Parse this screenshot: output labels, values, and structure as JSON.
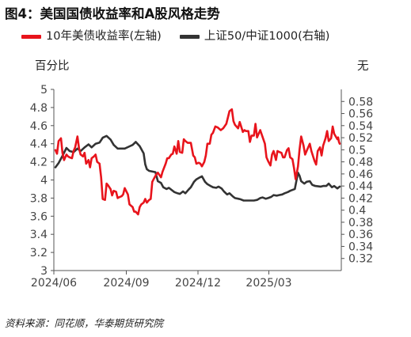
{
  "figure_title": "图4：美国国债收益率和A股风格走势",
  "source": "资料来源：同花顺，华泰期货研究院",
  "colors": {
    "series1": "#e8141c",
    "series2": "#333333",
    "axis": "#555555",
    "background": "#ffffff"
  },
  "chart_data": {
    "type": "line",
    "title": "图4：美国国债收益率和A股风格走势",
    "left_axis": {
      "unit": "百分比",
      "ylim": [
        3,
        5
      ],
      "ticks": [
        "3",
        "3.2",
        "3.4",
        "3.6",
        "3.8",
        "4",
        "4.2",
        "4.4",
        "4.6",
        "4.8",
        "5"
      ]
    },
    "right_axis": {
      "unit": "无",
      "ylim": [
        0.3,
        0.6
      ],
      "ticks": [
        "0.32",
        "0.34",
        "0.36",
        "0.38",
        "0.4",
        "0.42",
        "0.44",
        "0.46",
        "0.48",
        "0.5",
        "0.52",
        "0.54",
        "0.56",
        "0.58"
      ]
    },
    "x_axis": {
      "range": [
        "2024-06-01",
        "2025-06-01"
      ],
      "ticks": [
        "2024/06",
        "2024/09",
        "2024/12",
        "2025/03"
      ],
      "tick_dates": [
        "2024-06-01",
        "2024-09-01",
        "2024-12-01",
        "2025-03-01"
      ]
    },
    "grid": false,
    "legend_position": "top",
    "series": [
      {
        "name": "10年美债收益率(左轴)",
        "axis": "left",
        "color": "#e8141c",
        "points": [
          [
            "2024-06-03",
            4.33
          ],
          [
            "2024-06-05",
            4.29
          ],
          [
            "2024-06-07",
            4.43
          ],
          [
            "2024-06-10",
            4.46
          ],
          [
            "2024-06-12",
            4.3
          ],
          [
            "2024-06-14",
            4.22
          ],
          [
            "2024-06-17",
            4.28
          ],
          [
            "2024-06-19",
            4.26
          ],
          [
            "2024-06-21",
            4.25
          ],
          [
            "2024-06-24",
            4.24
          ],
          [
            "2024-06-26",
            4.32
          ],
          [
            "2024-06-28",
            4.36
          ],
          [
            "2024-07-01",
            4.48
          ],
          [
            "2024-07-03",
            4.35
          ],
          [
            "2024-07-05",
            4.28
          ],
          [
            "2024-07-08",
            4.26
          ],
          [
            "2024-07-10",
            4.3
          ],
          [
            "2024-07-12",
            4.18
          ],
          [
            "2024-07-15",
            4.22
          ],
          [
            "2024-07-17",
            4.14
          ],
          [
            "2024-07-19",
            4.24
          ],
          [
            "2024-07-22",
            4.26
          ],
          [
            "2024-07-24",
            4.28
          ],
          [
            "2024-07-26",
            4.2
          ],
          [
            "2024-07-29",
            4.18
          ],
          [
            "2024-07-31",
            4.03
          ],
          [
            "2024-08-02",
            3.79
          ],
          [
            "2024-08-05",
            3.78
          ],
          [
            "2024-08-07",
            3.96
          ],
          [
            "2024-08-09",
            3.94
          ],
          [
            "2024-08-12",
            3.9
          ],
          [
            "2024-08-14",
            3.83
          ],
          [
            "2024-08-16",
            3.88
          ],
          [
            "2024-08-19",
            3.87
          ],
          [
            "2024-08-21",
            3.8
          ],
          [
            "2024-08-23",
            3.81
          ],
          [
            "2024-08-26",
            3.82
          ],
          [
            "2024-08-28",
            3.84
          ],
          [
            "2024-08-30",
            3.91
          ],
          [
            "2024-09-03",
            3.84
          ],
          [
            "2024-09-05",
            3.73
          ],
          [
            "2024-09-09",
            3.7
          ],
          [
            "2024-09-11",
            3.65
          ],
          [
            "2024-09-13",
            3.65
          ],
          [
            "2024-09-16",
            3.62
          ],
          [
            "2024-09-18",
            3.7
          ],
          [
            "2024-09-20",
            3.73
          ],
          [
            "2024-09-23",
            3.75
          ],
          [
            "2024-09-25",
            3.79
          ],
          [
            "2024-09-27",
            3.75
          ],
          [
            "2024-09-30",
            3.78
          ],
          [
            "2024-10-02",
            3.79
          ],
          [
            "2024-10-04",
            3.98
          ],
          [
            "2024-10-07",
            4.03
          ],
          [
            "2024-10-09",
            4.06
          ],
          [
            "2024-10-11",
            4.08
          ],
          [
            "2024-10-15",
            4.03
          ],
          [
            "2024-10-17",
            4.09
          ],
          [
            "2024-10-21",
            4.18
          ],
          [
            "2024-10-23",
            4.24
          ],
          [
            "2024-10-25",
            4.24
          ],
          [
            "2024-10-28",
            4.28
          ],
          [
            "2024-10-30",
            4.29
          ],
          [
            "2024-11-01",
            4.37
          ],
          [
            "2024-11-04",
            4.29
          ],
          [
            "2024-11-06",
            4.43
          ],
          [
            "2024-11-08",
            4.31
          ],
          [
            "2024-11-11",
            4.3
          ],
          [
            "2024-11-13",
            4.45
          ],
          [
            "2024-11-15",
            4.43
          ],
          [
            "2024-11-18",
            4.41
          ],
          [
            "2024-11-20",
            4.41
          ],
          [
            "2024-11-22",
            4.41
          ],
          [
            "2024-11-25",
            4.27
          ],
          [
            "2024-11-27",
            4.25
          ],
          [
            "2024-11-29",
            4.18
          ],
          [
            "2024-12-02",
            4.19
          ],
          [
            "2024-12-04",
            4.18
          ],
          [
            "2024-12-06",
            4.15
          ],
          [
            "2024-12-09",
            4.2
          ],
          [
            "2024-12-11",
            4.27
          ],
          [
            "2024-12-13",
            4.4
          ],
          [
            "2024-12-16",
            4.4
          ],
          [
            "2024-12-18",
            4.5
          ],
          [
            "2024-12-20",
            4.52
          ],
          [
            "2024-12-23",
            4.59
          ],
          [
            "2024-12-26",
            4.58
          ],
          [
            "2024-12-30",
            4.55
          ],
          [
            "2025-01-02",
            4.57
          ],
          [
            "2025-01-06",
            4.62
          ],
          [
            "2025-01-08",
            4.69
          ],
          [
            "2025-01-10",
            4.76
          ],
          [
            "2025-01-13",
            4.78
          ],
          [
            "2025-01-15",
            4.65
          ],
          [
            "2025-01-17",
            4.61
          ],
          [
            "2025-01-21",
            4.57
          ],
          [
            "2025-01-23",
            4.64
          ],
          [
            "2025-01-27",
            4.53
          ],
          [
            "2025-01-29",
            4.55
          ],
          [
            "2025-01-31",
            4.54
          ],
          [
            "2025-02-03",
            4.54
          ],
          [
            "2025-02-05",
            4.42
          ],
          [
            "2025-02-07",
            4.49
          ],
          [
            "2025-02-10",
            4.49
          ],
          [
            "2025-02-12",
            4.62
          ],
          [
            "2025-02-14",
            4.47
          ],
          [
            "2025-02-18",
            4.55
          ],
          [
            "2025-02-20",
            4.5
          ],
          [
            "2025-02-24",
            4.4
          ],
          [
            "2025-02-26",
            4.25
          ],
          [
            "2025-02-28",
            4.21
          ],
          [
            "2025-03-03",
            4.16
          ],
          [
            "2025-03-05",
            4.28
          ],
          [
            "2025-03-07",
            4.32
          ],
          [
            "2025-03-10",
            4.22
          ],
          [
            "2025-03-12",
            4.32
          ],
          [
            "2025-03-14",
            4.31
          ],
          [
            "2025-03-17",
            4.3
          ],
          [
            "2025-03-19",
            4.25
          ],
          [
            "2025-03-21",
            4.25
          ],
          [
            "2025-03-24",
            4.33
          ],
          [
            "2025-03-26",
            4.35
          ],
          [
            "2025-03-28",
            4.25
          ],
          [
            "2025-03-31",
            4.23
          ],
          [
            "2025-04-02",
            4.13
          ],
          [
            "2025-04-04",
            4.01
          ],
          [
            "2025-04-07",
            4.15
          ],
          [
            "2025-04-09",
            4.34
          ],
          [
            "2025-04-11",
            4.48
          ],
          [
            "2025-04-14",
            4.38
          ],
          [
            "2025-04-16",
            4.28
          ],
          [
            "2025-04-18",
            4.32
          ],
          [
            "2025-04-22",
            4.4
          ],
          [
            "2025-04-24",
            4.32
          ],
          [
            "2025-04-28",
            4.21
          ],
          [
            "2025-04-30",
            4.17
          ],
          [
            "2025-05-02",
            4.32
          ],
          [
            "2025-05-05",
            4.36
          ],
          [
            "2025-05-07",
            4.27
          ],
          [
            "2025-05-09",
            4.38
          ],
          [
            "2025-05-12",
            4.46
          ],
          [
            "2025-05-14",
            4.54
          ],
          [
            "2025-05-16",
            4.43
          ],
          [
            "2025-05-19",
            4.46
          ],
          [
            "2025-05-21",
            4.59
          ],
          [
            "2025-05-23",
            4.51
          ],
          [
            "2025-05-27",
            4.45
          ],
          [
            "2025-05-28",
            4.47
          ],
          [
            "2025-05-29",
            4.42
          ],
          [
            "2025-05-30",
            4.4
          ]
        ]
      },
      {
        "name": "上证50/中证1000(右轴)",
        "axis": "right",
        "color": "#333333",
        "points": [
          [
            "2024-06-03",
            0.471
          ],
          [
            "2024-06-07",
            0.478
          ],
          [
            "2024-06-12",
            0.49
          ],
          [
            "2024-06-17",
            0.503
          ],
          [
            "2024-06-21",
            0.498
          ],
          [
            "2024-06-26",
            0.496
          ],
          [
            "2024-07-01",
            0.502
          ],
          [
            "2024-07-05",
            0.498
          ],
          [
            "2024-07-10",
            0.504
          ],
          [
            "2024-07-15",
            0.509
          ],
          [
            "2024-07-19",
            0.504
          ],
          [
            "2024-07-24",
            0.51
          ],
          [
            "2024-07-29",
            0.512
          ],
          [
            "2024-08-02",
            0.52
          ],
          [
            "2024-08-07",
            0.523
          ],
          [
            "2024-08-12",
            0.517
          ],
          [
            "2024-08-16",
            0.508
          ],
          [
            "2024-08-21",
            0.502
          ],
          [
            "2024-08-26",
            0.502
          ],
          [
            "2024-08-30",
            0.502
          ],
          [
            "2024-09-04",
            0.505
          ],
          [
            "2024-09-09",
            0.508
          ],
          [
            "2024-09-13",
            0.513
          ],
          [
            "2024-09-18",
            0.506
          ],
          [
            "2024-09-23",
            0.494
          ],
          [
            "2024-09-25",
            0.476
          ],
          [
            "2024-09-27",
            0.468
          ],
          [
            "2024-09-30",
            0.465
          ],
          [
            "2024-10-08",
            0.463
          ],
          [
            "2024-10-11",
            0.448
          ],
          [
            "2024-10-15",
            0.445
          ],
          [
            "2024-10-18",
            0.438
          ],
          [
            "2024-10-22",
            0.435
          ],
          [
            "2024-10-25",
            0.437
          ],
          [
            "2024-10-29",
            0.433
          ],
          [
            "2024-11-01",
            0.43
          ],
          [
            "2024-11-05",
            0.428
          ],
          [
            "2024-11-08",
            0.427
          ],
          [
            "2024-11-12",
            0.431
          ],
          [
            "2024-11-15",
            0.428
          ],
          [
            "2024-11-19",
            0.434
          ],
          [
            "2024-11-22",
            0.438
          ],
          [
            "2024-11-26",
            0.447
          ],
          [
            "2024-11-29",
            0.451
          ],
          [
            "2024-12-03",
            0.454
          ],
          [
            "2024-12-06",
            0.456
          ],
          [
            "2024-12-10",
            0.447
          ],
          [
            "2024-12-13",
            0.443
          ],
          [
            "2024-12-17",
            0.44
          ],
          [
            "2024-12-20",
            0.438
          ],
          [
            "2024-12-24",
            0.437
          ],
          [
            "2024-12-27",
            0.439
          ],
          [
            "2024-12-31",
            0.436
          ],
          [
            "2025-01-03",
            0.431
          ],
          [
            "2025-01-07",
            0.426
          ],
          [
            "2025-01-10",
            0.428
          ],
          [
            "2025-01-14",
            0.423
          ],
          [
            "2025-01-17",
            0.42
          ],
          [
            "2025-01-21",
            0.419
          ],
          [
            "2025-01-24",
            0.418
          ],
          [
            "2025-01-28",
            0.416
          ],
          [
            "2025-02-05",
            0.416
          ],
          [
            "2025-02-10",
            0.416
          ],
          [
            "2025-02-14",
            0.417
          ],
          [
            "2025-02-18",
            0.42
          ],
          [
            "2025-02-21",
            0.421
          ],
          [
            "2025-02-25",
            0.419
          ],
          [
            "2025-02-28",
            0.42
          ],
          [
            "2025-03-04",
            0.422
          ],
          [
            "2025-03-07",
            0.425
          ],
          [
            "2025-03-11",
            0.424
          ],
          [
            "2025-03-14",
            0.425
          ],
          [
            "2025-03-18",
            0.426
          ],
          [
            "2025-03-21",
            0.428
          ],
          [
            "2025-03-25",
            0.43
          ],
          [
            "2025-03-28",
            0.432
          ],
          [
            "2025-04-01",
            0.434
          ],
          [
            "2025-04-03",
            0.435
          ],
          [
            "2025-04-07",
            0.462
          ],
          [
            "2025-04-09",
            0.457
          ],
          [
            "2025-04-11",
            0.448
          ],
          [
            "2025-04-15",
            0.444
          ],
          [
            "2025-04-18",
            0.447
          ],
          [
            "2025-04-22",
            0.448
          ],
          [
            "2025-04-25",
            0.442
          ],
          [
            "2025-04-29",
            0.44
          ],
          [
            "2025-05-06",
            0.439
          ],
          [
            "2025-05-09",
            0.44
          ],
          [
            "2025-05-13",
            0.44
          ],
          [
            "2025-05-16",
            0.444
          ],
          [
            "2025-05-20",
            0.438
          ],
          [
            "2025-05-23",
            0.44
          ],
          [
            "2025-05-27",
            0.436
          ],
          [
            "2025-05-30",
            0.439
          ]
        ]
      }
    ]
  }
}
